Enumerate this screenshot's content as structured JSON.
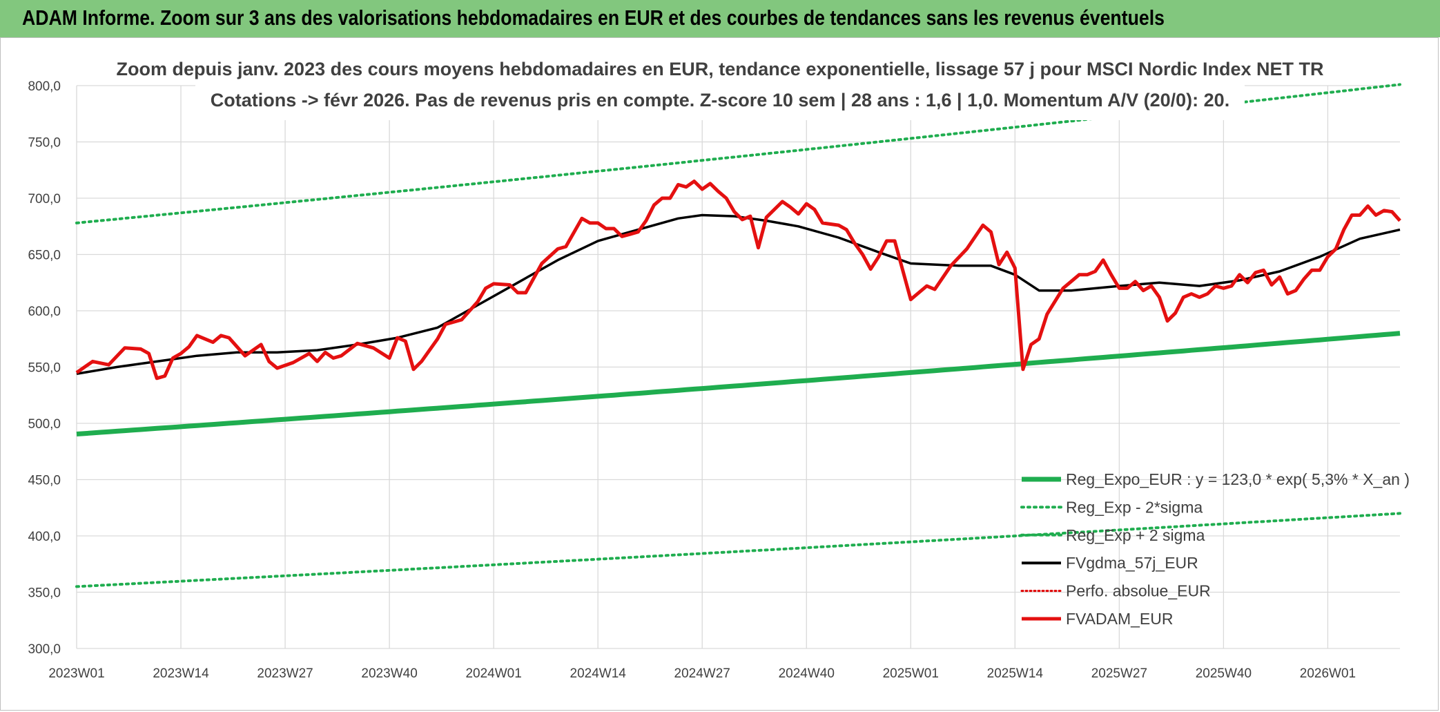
{
  "banner": {
    "title": "ADAM Informe. Zoom sur 3 ans des valorisations hebdomadaires en EUR et des courbes de tendances sans les revenus éventuels"
  },
  "colors": {
    "banner_bg": "#82c77e",
    "trend": "#1fad4f",
    "band": "#1fad4f",
    "smooth": "#000000",
    "perf": "#e00000",
    "price": "#e41010",
    "grid": "#d9d9d9"
  },
  "chart_data": {
    "type": "line",
    "title_line1": "Zoom depuis janv. 2023 des cours moyens hebdomadaires en EUR, tendance exponentielle, lissage 57 j pour MSCI Nordic Index NET TR",
    "title_line2": "Cotations -> févr 2026. Pas de revenus pris en compte. Z-score 10 sem | 28 ans : 1,6 | 1,0. Momentum A/V (20/0): 20.",
    "ylim": [
      300,
      800
    ],
    "yticks": [
      "300,0",
      "350,0",
      "400,0",
      "450,0",
      "500,0",
      "550,0",
      "600,0",
      "650,0",
      "700,0",
      "750,0",
      "800,0"
    ],
    "x_weeks_total": 165,
    "xticks": [
      {
        "label": "2023W01",
        "week": 0
      },
      {
        "label": "2023W14",
        "week": 13
      },
      {
        "label": "2023W27",
        "week": 26
      },
      {
        "label": "2023W40",
        "week": 39
      },
      {
        "label": "2024W01",
        "week": 52
      },
      {
        "label": "2024W14",
        "week": 65
      },
      {
        "label": "2024W27",
        "week": 78
      },
      {
        "label": "2024W40",
        "week": 91
      },
      {
        "label": "2025W01",
        "week": 104
      },
      {
        "label": "2025W14",
        "week": 117
      },
      {
        "label": "2025W27",
        "week": 130
      },
      {
        "label": "2025W40",
        "week": 143
      },
      {
        "label": "2026W01",
        "week": 156
      }
    ],
    "grid": true,
    "legend_position": "bottom-right",
    "series": [
      {
        "key": "reg",
        "name": "Reg_Expo_EUR : y = 123,0 * exp( 5,3% *  X_an )",
        "style": "solid-thick",
        "start": 490.5,
        "end": 580
      },
      {
        "key": "low",
        "name": "Reg_Exp - 2*sigma",
        "style": "dotted",
        "start": 355,
        "end": 420
      },
      {
        "key": "high",
        "name": "Reg_Exp + 2 sigma",
        "style": "dotted",
        "start": 678,
        "end": 801
      },
      {
        "key": "smooth",
        "name": "FVgdma_57j_EUR",
        "style": "solid",
        "points": [
          [
            0,
            544
          ],
          [
            5,
            550
          ],
          [
            10,
            555
          ],
          [
            15,
            560
          ],
          [
            20,
            563
          ],
          [
            25,
            563
          ],
          [
            30,
            565
          ],
          [
            35,
            570
          ],
          [
            40,
            576
          ],
          [
            45,
            585
          ],
          [
            50,
            605
          ],
          [
            55,
            625
          ],
          [
            60,
            645
          ],
          [
            65,
            662
          ],
          [
            70,
            672
          ],
          [
            75,
            682
          ],
          [
            78,
            685
          ],
          [
            82,
            684
          ],
          [
            86,
            680
          ],
          [
            90,
            675
          ],
          [
            95,
            665
          ],
          [
            100,
            652
          ],
          [
            104,
            642
          ],
          [
            110,
            640
          ],
          [
            114,
            640
          ],
          [
            117,
            632
          ],
          [
            120,
            618
          ],
          [
            124,
            618
          ],
          [
            130,
            622
          ],
          [
            135,
            625
          ],
          [
            140,
            622
          ],
          [
            145,
            627
          ],
          [
            150,
            635
          ],
          [
            155,
            648
          ],
          [
            160,
            664
          ],
          [
            165,
            672
          ]
        ]
      },
      {
        "key": "perf",
        "name": "Perfo. absolue_EUR",
        "style": "dotted-red",
        "points": []
      },
      {
        "key": "price",
        "name": "FVADAM_EUR",
        "style": "solid-thick-red",
        "points": [
          [
            0,
            545
          ],
          [
            2,
            555
          ],
          [
            4,
            552
          ],
          [
            6,
            567
          ],
          [
            8,
            566
          ],
          [
            9,
            562
          ],
          [
            10,
            540
          ],
          [
            11,
            542
          ],
          [
            12,
            558
          ],
          [
            13,
            562
          ],
          [
            14,
            568
          ],
          [
            15,
            578
          ],
          [
            17,
            572
          ],
          [
            18,
            578
          ],
          [
            19,
            576
          ],
          [
            21,
            560
          ],
          [
            23,
            570
          ],
          [
            24,
            555
          ],
          [
            25,
            549
          ],
          [
            27,
            554
          ],
          [
            29,
            562
          ],
          [
            30,
            555
          ],
          [
            31,
            563
          ],
          [
            32,
            558
          ],
          [
            33,
            560
          ],
          [
            35,
            571
          ],
          [
            37,
            567
          ],
          [
            39,
            558
          ],
          [
            40,
            576
          ],
          [
            41,
            573
          ],
          [
            42,
            548
          ],
          [
            43,
            555
          ],
          [
            45,
            575
          ],
          [
            46,
            588
          ],
          [
            48,
            592
          ],
          [
            50,
            608
          ],
          [
            51,
            620
          ],
          [
            52,
            624
          ],
          [
            54,
            623
          ],
          [
            55,
            616
          ],
          [
            56,
            616
          ],
          [
            58,
            642
          ],
          [
            60,
            655
          ],
          [
            61,
            657
          ],
          [
            63,
            682
          ],
          [
            64,
            678
          ],
          [
            65,
            678
          ],
          [
            66,
            673
          ],
          [
            67,
            673
          ],
          [
            68,
            666
          ],
          [
            69,
            668
          ],
          [
            70,
            670
          ],
          [
            71,
            680
          ],
          [
            72,
            694
          ],
          [
            73,
            700
          ],
          [
            74,
            700
          ],
          [
            75,
            712
          ],
          [
            76,
            710
          ],
          [
            77,
            715
          ],
          [
            78,
            708
          ],
          [
            79,
            713
          ],
          [
            80,
            706
          ],
          [
            81,
            700
          ],
          [
            82,
            688
          ],
          [
            83,
            681
          ],
          [
            84,
            684
          ],
          [
            85,
            656
          ],
          [
            86,
            683
          ],
          [
            88,
            697
          ],
          [
            89,
            692
          ],
          [
            90,
            686
          ],
          [
            91,
            695
          ],
          [
            92,
            690
          ],
          [
            93,
            678
          ],
          [
            95,
            676
          ],
          [
            96,
            672
          ],
          [
            97,
            660
          ],
          [
            98,
            650
          ],
          [
            99,
            637
          ],
          [
            100,
            648
          ],
          [
            101,
            662
          ],
          [
            102,
            662
          ],
          [
            104,
            610
          ],
          [
            105,
            616
          ],
          [
            106,
            622
          ],
          [
            107,
            619
          ],
          [
            109,
            640
          ],
          [
            111,
            655
          ],
          [
            113,
            676
          ],
          [
            114,
            670
          ],
          [
            115,
            641
          ],
          [
            116,
            652
          ],
          [
            117,
            638
          ],
          [
            118,
            548
          ],
          [
            119,
            570
          ],
          [
            120,
            575
          ],
          [
            121,
            597
          ],
          [
            123,
            620
          ],
          [
            125,
            632
          ],
          [
            126,
            632
          ],
          [
            127,
            635
          ],
          [
            128,
            645
          ],
          [
            129,
            632
          ],
          [
            130,
            620
          ],
          [
            131,
            620
          ],
          [
            132,
            626
          ],
          [
            133,
            618
          ],
          [
            134,
            622
          ],
          [
            135,
            612
          ],
          [
            136,
            591
          ],
          [
            137,
            598
          ],
          [
            138,
            612
          ],
          [
            139,
            615
          ],
          [
            140,
            612
          ],
          [
            141,
            615
          ],
          [
            142,
            622
          ],
          [
            143,
            620
          ],
          [
            144,
            622
          ],
          [
            145,
            632
          ],
          [
            146,
            625
          ],
          [
            147,
            634
          ],
          [
            148,
            636
          ],
          [
            149,
            623
          ],
          [
            150,
            630
          ],
          [
            151,
            615
          ],
          [
            152,
            618
          ],
          [
            153,
            628
          ],
          [
            154,
            636
          ],
          [
            155,
            636
          ],
          [
            156,
            648
          ],
          [
            157,
            655
          ],
          [
            158,
            672
          ],
          [
            159,
            685
          ],
          [
            160,
            685
          ],
          [
            161,
            693
          ],
          [
            162,
            685
          ],
          [
            163,
            689
          ],
          [
            164,
            688
          ],
          [
            165,
            680
          ]
        ]
      }
    ]
  }
}
